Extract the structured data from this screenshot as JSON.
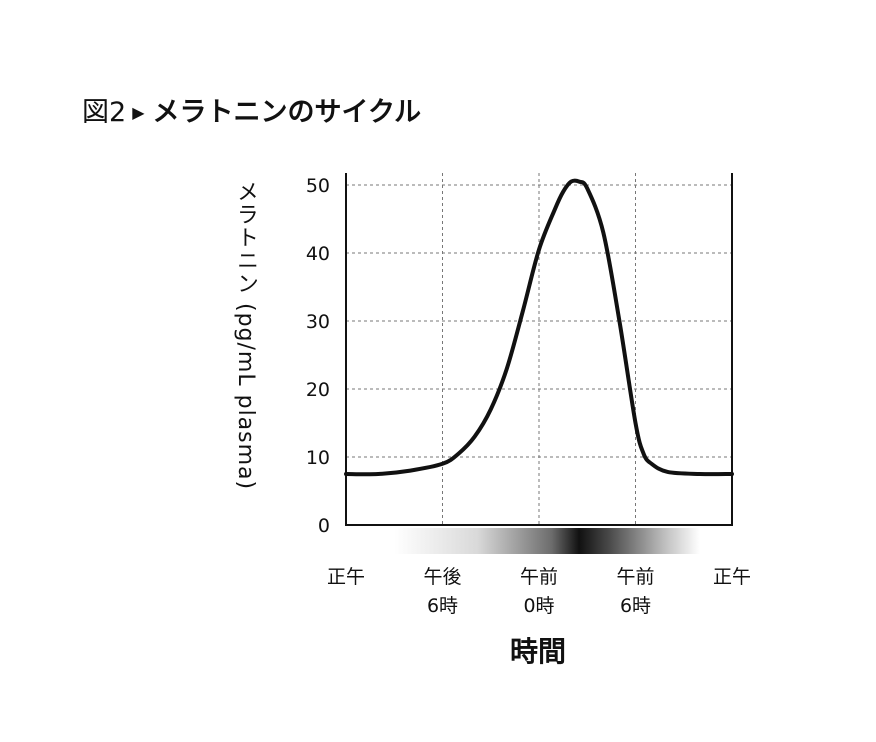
{
  "figure": {
    "label": "図2",
    "marker": "▶",
    "title": "メラトニンのサイクル"
  },
  "chart_data": {
    "type": "line",
    "ylabel": "メラトニン (pg/mL plasma)",
    "xlabel": "時間",
    "ylim": [
      0,
      50
    ],
    "yticks": [
      "0",
      "10",
      "20",
      "30",
      "40",
      "50"
    ],
    "xlim": [
      0,
      24
    ],
    "grid": true,
    "xticks": [
      {
        "at": 0,
        "line1": "正午",
        "line2": ""
      },
      {
        "at": 6,
        "line1": "午後",
        "line2": "6時"
      },
      {
        "at": 12,
        "line1": "午前",
        "line2": "0時"
      },
      {
        "at": 18,
        "line1": "午前",
        "line2": "6時"
      },
      {
        "at": 24,
        "line1": "正午",
        "line2": ""
      }
    ],
    "series": [
      {
        "x": [
          0,
          2,
          4,
          6,
          7,
          8,
          9,
          10,
          11,
          12,
          13,
          13.5,
          14,
          14.5,
          15,
          16,
          17,
          18,
          18.5,
          19,
          20,
          22,
          24
        ],
        "y": [
          7.5,
          7.5,
          8,
          9,
          10.5,
          13,
          17,
          23,
          31.5,
          40.5,
          46.5,
          49,
          50.5,
          50.5,
          49.5,
          43,
          30,
          15,
          10.5,
          9,
          7.8,
          7.5,
          7.5
        ]
      }
    ],
    "time_band": {
      "dark_center": 14.5,
      "start": 3,
      "end": 22
    }
  }
}
